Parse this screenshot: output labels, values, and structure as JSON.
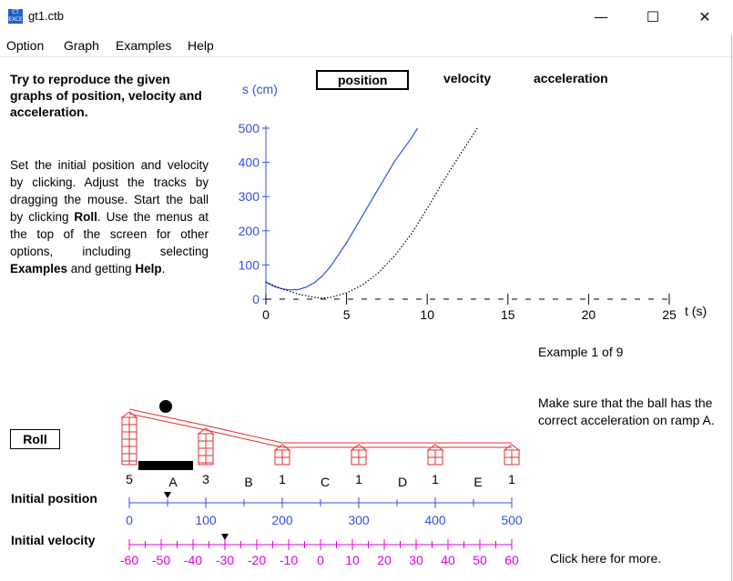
{
  "window": {
    "title": "gt1.ctb",
    "icon_text": "CT EXCE"
  },
  "menu": [
    "Option",
    "Graph",
    "Examples",
    "Help"
  ],
  "instructions": {
    "title": "Try to reproduce the given graphs of position, velocity and acceleration.",
    "body_parts": [
      "Set the initial position and velocity by clicking.  Adjust the tracks by dragging the mouse.  Start the ball by clicking ",
      "Roll",
      ".  Use the menus at the top of the screen for other options, including selecting ",
      "Examples",
      " and getting ",
      "Help",
      "."
    ]
  },
  "tabs": [
    {
      "label": "position",
      "active": true
    },
    {
      "label": "velocity",
      "active": false
    },
    {
      "label": "acceleration",
      "active": false
    }
  ],
  "chart_data": {
    "type": "line",
    "ylabel": "s (cm)",
    "xlabel": "t (s)",
    "xlim": [
      0,
      25
    ],
    "ylim": [
      0,
      500
    ],
    "x_ticks": [
      0,
      5,
      10,
      15,
      20,
      25
    ],
    "y_ticks": [
      0,
      100,
      200,
      300,
      400,
      500
    ],
    "series": [
      {
        "style": "solid",
        "color": "#3050e0",
        "x": [
          0,
          0.5,
          1,
          1.5,
          2,
          2.5,
          3,
          3.5,
          4,
          5,
          6,
          7,
          8,
          9,
          9.4
        ],
        "y": [
          50,
          37,
          30,
          27,
          28,
          35,
          48,
          68,
          95,
          165,
          245,
          325,
          405,
          470,
          500
        ]
      },
      {
        "style": "dotted",
        "color": "#000000",
        "x": [
          0,
          1,
          2,
          3,
          3.5,
          4,
          5,
          6,
          7,
          8,
          9,
          10,
          11,
          12,
          13.1
        ],
        "y": [
          50,
          30,
          15,
          5,
          3,
          5,
          18,
          42,
          78,
          128,
          190,
          265,
          345,
          420,
          500
        ]
      }
    ]
  },
  "example_counter": "Example 1 of 9",
  "hint": "Make sure that the ball has the correct acceleration on ramp A.",
  "more_link": "Click here for more.",
  "roll_button": "Roll",
  "track": {
    "post_heights": [
      "5",
      "3",
      "1",
      "1",
      "1",
      "1"
    ],
    "ramp_labels": [
      "A",
      "B",
      "C",
      "D",
      "E"
    ]
  },
  "initial_position": {
    "label": "Initial position",
    "ticks": [
      "0",
      "100",
      "200",
      "300",
      "400",
      "500"
    ],
    "value": 50,
    "color": "#3050e0"
  },
  "initial_velocity": {
    "label": "Initial velocity",
    "ticks": [
      "-60",
      "-50",
      "-40",
      "-30",
      "-20",
      "-10",
      "0",
      "10",
      "20",
      "30",
      "40",
      "50",
      "60"
    ],
    "value": -30,
    "color": "#e000e0"
  },
  "colors": {
    "track": "#e03030",
    "axis_blue": "#3050e0",
    "axis_magenta": "#e000e0"
  }
}
